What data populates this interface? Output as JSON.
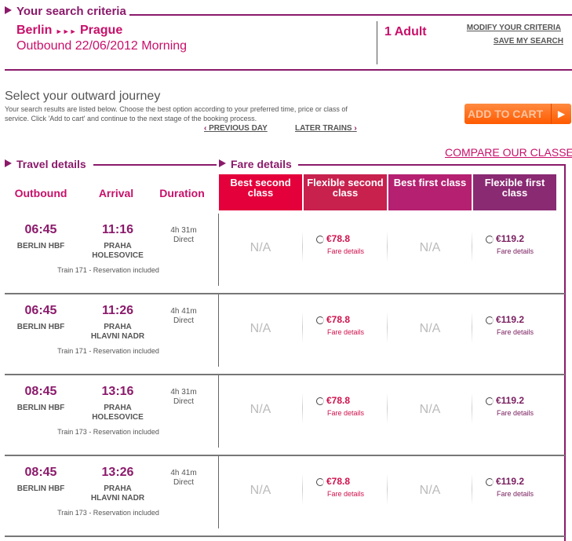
{
  "criteria": {
    "title": "Your search criteria",
    "from": "Berlin",
    "arrows": "►►►",
    "to": "Prague",
    "outbound": "Outbound 22/06/2012 Morning",
    "passengers": "1 Adult",
    "modify": "MODIFY YOUR CRITERIA",
    "save": "SAVE MY SEARCH"
  },
  "journey": {
    "title": "Select your outward journey",
    "desc": "Your search results are listed below. Choose the best option according to your preferred time, price or class of service. Click 'Add to cart' and continue to the next stage of the booking process.",
    "prev": "PREVIOUS DAY",
    "later": "LATER TRAINS",
    "add_to_cart": "ADD TO CART"
  },
  "compare": "COMPARE OUR CLASSES",
  "travel_details": "Travel details",
  "fare_details": "Fare details",
  "columns": {
    "outbound": "Outbound",
    "arrival": "Arrival",
    "duration": "Duration"
  },
  "fare_classes": [
    {
      "label": "Best second class",
      "color": "#e4003a"
    },
    {
      "label": "Flexible second class",
      "color": "#c8214e"
    },
    {
      "label": "Best first class",
      "color": "#b52071"
    },
    {
      "label": "Flexible first class",
      "color": "#8a2a72"
    }
  ],
  "fare_link": "Fare details",
  "rows": [
    {
      "dep": "06:45",
      "arr": "11:16",
      "from": "BERLIN HBF",
      "to": "PRAHA HOLESOVICE",
      "dur": "4h 31m",
      "type": "Direct",
      "train": "Train 171 - Reservation included",
      "fares": [
        "N/A",
        "€78.8",
        "N/A",
        "€119.2"
      ]
    },
    {
      "dep": "06:45",
      "arr": "11:26",
      "from": "BERLIN HBF",
      "to": "PRAHA HLAVNI NADR",
      "dur": "4h 41m",
      "type": "Direct",
      "train": "Train 171 - Reservation included",
      "fares": [
        "N/A",
        "€78.8",
        "N/A",
        "€119.2"
      ]
    },
    {
      "dep": "08:45",
      "arr": "13:16",
      "from": "BERLIN HBF",
      "to": "PRAHA HOLESOVICE",
      "dur": "4h 31m",
      "type": "Direct",
      "train": "Train 173 - Reservation included",
      "fares": [
        "N/A",
        "€78.8",
        "N/A",
        "€119.2"
      ]
    },
    {
      "dep": "08:45",
      "arr": "13:26",
      "from": "BERLIN HBF",
      "to": "PRAHA HLAVNI NADR",
      "dur": "4h 41m",
      "type": "Direct",
      "train": "Train 173 - Reservation included",
      "fares": [
        "N/A",
        "€78.8",
        "N/A",
        "€119.2"
      ]
    }
  ]
}
